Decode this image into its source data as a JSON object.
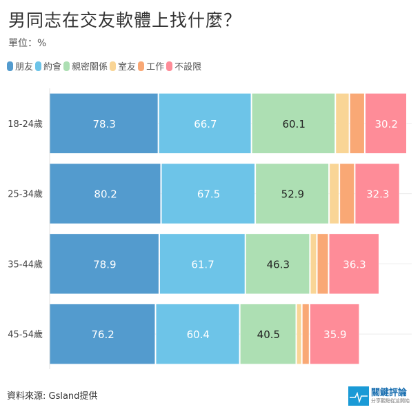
{
  "chart_data": {
    "type": "bar",
    "orientation": "horizontal",
    "stacked": true,
    "title": "男同志在交友軟體上找什麼？",
    "subtitle": "單位：%",
    "categories": [
      "18-24歲",
      "25-34歲",
      "35-44歲",
      "45-54歲"
    ],
    "series": [
      {
        "name": "朋友",
        "color": "#539bce",
        "label_color": "#ffffff",
        "values": [
          78.3,
          80.2,
          78.9,
          76.2
        ],
        "labeled": true
      },
      {
        "name": "約會",
        "color": "#6dc4e8",
        "label_color": "#ffffff",
        "values": [
          66.7,
          67.5,
          61.7,
          60.4
        ],
        "labeled": true
      },
      {
        "name": "親密關係",
        "color": "#addfb3",
        "label_color": "#222222",
        "values": [
          60.1,
          52.9,
          46.3,
          40.5
        ],
        "labeled": true
      },
      {
        "name": "室友",
        "color": "#f9d596",
        "label_color": "#222222",
        "values": [
          10.1,
          7.4,
          5.0,
          4.0
        ],
        "labeled": false
      },
      {
        "name": "工作",
        "color": "#f9a875",
        "label_color": "#222222",
        "values": [
          11.0,
          11.0,
          8.4,
          5.5
        ],
        "labeled": false
      },
      {
        "name": "不設限",
        "color": "#fe8c98",
        "label_color": "#ffffff",
        "values": [
          30.2,
          32.3,
          36.3,
          35.9
        ],
        "labeled": true
      }
    ],
    "xlim": [
      0,
      257
    ],
    "legend_position": "top-left",
    "grid": true
  },
  "source": "資料來源: Gsland提供",
  "logo": {
    "main": "關鍵評論",
    "sub": "分享觀點從這開始"
  }
}
